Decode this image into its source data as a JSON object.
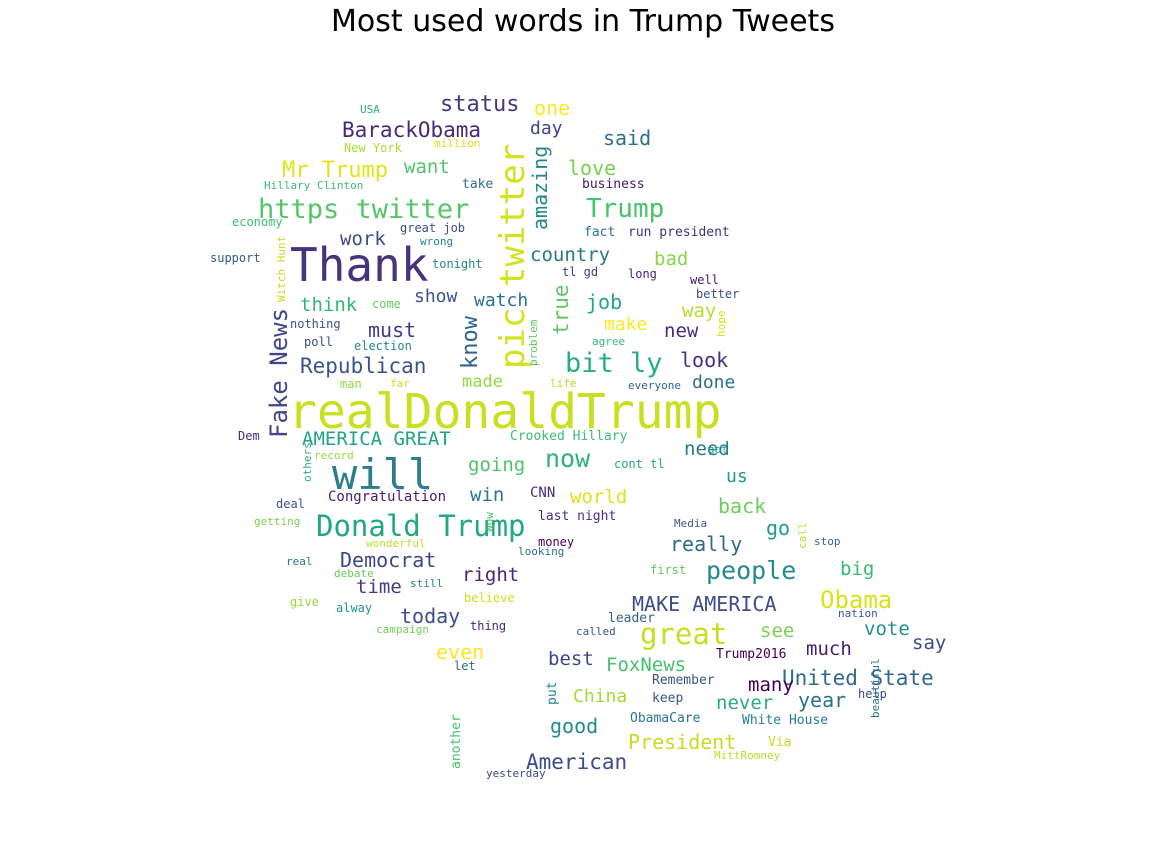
{
  "title": "Most used words in Trump Tweets",
  "words": [
    {
      "t": "realDonaldTrump",
      "c": "#c8e020"
    },
    {
      "t": "Thank",
      "c": "#46337e"
    },
    {
      "t": "will",
      "c": "#2c7e8e"
    },
    {
      "t": "pic twitter",
      "c": "#d2e21b"
    },
    {
      "t": "Donald Trump",
      "c": "#22a784"
    },
    {
      "t": "https twitter",
      "c": "#54c568"
    },
    {
      "t": "great",
      "c": "#c5e021"
    },
    {
      "t": "bit ly",
      "c": "#29af7f"
    },
    {
      "t": "now",
      "c": "#2db27d"
    },
    {
      "t": "people",
      "c": "#238a8d"
    },
    {
      "t": "Trump",
      "c": "#4ac16d"
    },
    {
      "t": "Obama",
      "c": "#d8e219"
    },
    {
      "t": "MAKE AMERICA",
      "c": "#3e4c8a"
    },
    {
      "t": "Mr Trump",
      "c": "#e2e418"
    },
    {
      "t": "BarackObama",
      "c": "#482878"
    },
    {
      "t": "Republican",
      "c": "#3b528b"
    },
    {
      "t": "status",
      "c": "#453781"
    },
    {
      "t": "Fake News",
      "c": "#404688"
    },
    {
      "t": "AMERICA GREAT",
      "c": "#20a486"
    },
    {
      "t": "United State",
      "c": "#31688e"
    },
    {
      "t": "Democrat",
      "c": "#3f4788"
    },
    {
      "t": "American",
      "c": "#3e4a89"
    },
    {
      "t": "President",
      "c": "#c0df25"
    },
    {
      "t": "amazing",
      "c": "#24878e"
    },
    {
      "t": "country",
      "c": "#2a768e"
    },
    {
      "t": "world",
      "c": "#dfe318"
    },
    {
      "t": "today",
      "c": "#3d4e8a"
    },
    {
      "t": "FoxNews",
      "c": "#46c06f"
    },
    {
      "t": "China",
      "c": "#a2da37"
    },
    {
      "t": "know",
      "c": "#33638d"
    },
    {
      "t": "true",
      "c": "#5ec962"
    },
    {
      "t": "said",
      "c": "#2e6f8e"
    },
    {
      "t": "love",
      "c": "#7ad151"
    },
    {
      "t": "one",
      "c": "#fde725"
    },
    {
      "t": "day",
      "c": "#404387"
    },
    {
      "t": "want",
      "c": "#52c569"
    },
    {
      "t": "work",
      "c": "#3e4989"
    },
    {
      "t": "bad",
      "c": "#88d548"
    },
    {
      "t": "think",
      "c": "#35b779"
    },
    {
      "t": "show",
      "c": "#3b528b"
    },
    {
      "t": "watch",
      "c": "#2c728e"
    },
    {
      "t": "job",
      "c": "#22a884"
    },
    {
      "t": "way",
      "c": "#b5de2b"
    },
    {
      "t": "must",
      "c": "#443983"
    },
    {
      "t": "make",
      "c": "#fde725"
    },
    {
      "t": "new",
      "c": "#472c7a"
    },
    {
      "t": "look",
      "c": "#46337e"
    },
    {
      "t": "made",
      "c": "#95d840"
    },
    {
      "t": "done",
      "c": "#2d708e"
    },
    {
      "t": "need",
      "c": "#2a788e"
    },
    {
      "t": "going",
      "c": "#4ec36b"
    },
    {
      "t": "us",
      "c": "#1f9a8a"
    },
    {
      "t": "win",
      "c": "#2a788e"
    },
    {
      "t": "back",
      "c": "#6ccd5a"
    },
    {
      "t": "go",
      "c": "#1e9c89"
    },
    {
      "t": "really",
      "c": "#31688e"
    },
    {
      "t": "right",
      "c": "#482576"
    },
    {
      "t": "time",
      "c": "#443b84"
    },
    {
      "t": "big",
      "c": "#38b977"
    },
    {
      "t": "see",
      "c": "#7ad151"
    },
    {
      "t": "vote",
      "c": "#21918c"
    },
    {
      "t": "say",
      "c": "#3f4889"
    },
    {
      "t": "much",
      "c": "#481f70"
    },
    {
      "t": "even",
      "c": "#fde725"
    },
    {
      "t": "best",
      "c": "#414487"
    },
    {
      "t": "many",
      "c": "#440154"
    },
    {
      "t": "never",
      "c": "#27ad81"
    },
    {
      "t": "year",
      "c": "#2d708e"
    },
    {
      "t": "good",
      "c": "#23898e"
    },
    {
      "t": "CNN",
      "c": "#472d7b"
    },
    {
      "t": "Congratulation",
      "c": "#481c6e"
    },
    {
      "t": "Crooked Hillary",
      "c": "#3dbc74"
    },
    {
      "t": "last night",
      "c": "#46307e"
    },
    {
      "t": "Trump2016",
      "c": "#440154"
    },
    {
      "t": "White House",
      "c": "#277f8e"
    },
    {
      "t": "ObamaCare",
      "c": "#2a768e"
    },
    {
      "t": "Via",
      "c": "#c2df23"
    },
    {
      "t": "keep",
      "c": "#39558c"
    },
    {
      "t": "Remember",
      "c": "#3b528b"
    },
    {
      "t": "MittRomney",
      "c": "#b8de29"
    },
    {
      "t": "yesterday",
      "c": "#404688"
    },
    {
      "t": "another",
      "c": "#4ac16d"
    },
    {
      "t": "put",
      "c": "#25848e"
    },
    {
      "t": "let",
      "c": "#306a8e"
    },
    {
      "t": "leader",
      "c": "#34618d"
    },
    {
      "t": "called",
      "c": "#3a538b"
    },
    {
      "t": "nation",
      "c": "#38598c"
    },
    {
      "t": "help",
      "c": "#3f4788"
    },
    {
      "t": "beautiful",
      "c": "#2a788e"
    },
    {
      "t": "thing",
      "c": "#482475"
    },
    {
      "t": "campaign",
      "c": "#73d056"
    },
    {
      "t": "believe",
      "c": "#c8e020"
    },
    {
      "t": "alway",
      "c": "#1f968b"
    },
    {
      "t": "give",
      "c": "#95d840"
    },
    {
      "t": "first",
      "c": "#5ec962"
    },
    {
      "t": "stop",
      "c": "#35608d"
    },
    {
      "t": "call",
      "c": "#bddf26"
    },
    {
      "t": "Media",
      "c": "#39568c"
    },
    {
      "t": "money",
      "c": "#440154"
    },
    {
      "t": "looking",
      "c": "#2c728e"
    },
    {
      "t": "Wow",
      "c": "#4ac16d"
    },
    {
      "t": "still",
      "c": "#27808e"
    },
    {
      "t": "debate",
      "c": "#65cb5e"
    },
    {
      "t": "real",
      "c": "#2c738e"
    },
    {
      "t": "wonderful",
      "c": "#b5de2b"
    },
    {
      "t": "getting",
      "c": "#7ad151"
    },
    {
      "t": "deal",
      "c": "#3b528b"
    },
    {
      "t": "others",
      "c": "#2db27d"
    },
    {
      "t": "record",
      "c": "#99d83d"
    },
    {
      "t": "Dem",
      "c": "#472d7b"
    },
    {
      "t": "cont tl",
      "c": "#22a884"
    },
    {
      "t": "got",
      "c": "#20a486"
    },
    {
      "t": "everyone",
      "c": "#33628d"
    },
    {
      "t": "life",
      "c": "#b2dd2d"
    },
    {
      "t": "problem",
      "c": "#5ec962"
    },
    {
      "t": "far",
      "c": "#c2df23"
    },
    {
      "t": "man",
      "c": "#93d741"
    },
    {
      "t": "poll",
      "c": "#404688"
    },
    {
      "t": "election",
      "c": "#24878e"
    },
    {
      "t": "nothing",
      "c": "#3b528b"
    },
    {
      "t": "come",
      "c": "#65cb5e"
    },
    {
      "t": "Witch Hunt",
      "c": "#c2df23"
    },
    {
      "t": "agree",
      "c": "#35b779"
    },
    {
      "t": "hope",
      "c": "#d8e219"
    },
    {
      "t": "better",
      "c": "#3e4c8a"
    },
    {
      "t": "well",
      "c": "#471164"
    },
    {
      "t": "long",
      "c": "#482173"
    },
    {
      "t": "tl gd",
      "c": "#443a83"
    },
    {
      "t": "tonight",
      "c": "#23888e"
    },
    {
      "t": "wrong",
      "c": "#27808e"
    },
    {
      "t": "great job",
      "c": "#3d4d8a"
    },
    {
      "t": "support",
      "c": "#38598c"
    },
    {
      "t": "economy",
      "c": "#3dbc74"
    },
    {
      "t": "fact",
      "c": "#2c728e"
    },
    {
      "t": "run president",
      "c": "#46307e"
    },
    {
      "t": "business",
      "c": "#481769"
    },
    {
      "t": "take",
      "c": "#2e6f8e"
    },
    {
      "t": "Hillary Clinton",
      "c": "#3bbb75"
    },
    {
      "t": "New York",
      "c": "#addc30"
    },
    {
      "t": "million",
      "c": "#d8e219"
    },
    {
      "t": "USA",
      "c": "#2db27d"
    }
  ]
}
